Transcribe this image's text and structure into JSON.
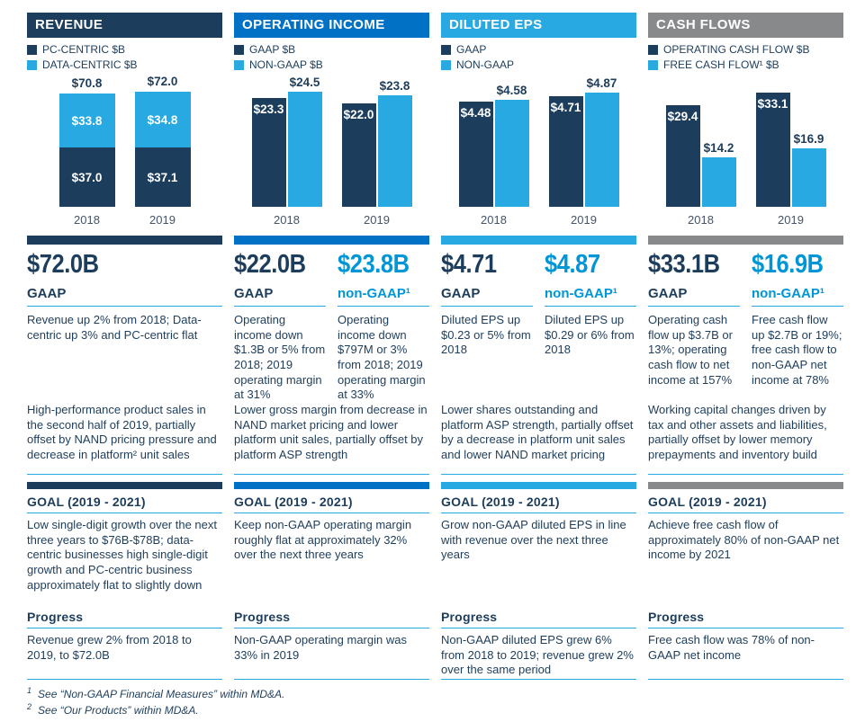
{
  "colors": {
    "navy": "#1d3d5c",
    "medium_blue": "#0071c5",
    "light_blue": "#29a9e1",
    "gray": "#87898b",
    "nongaap_blue": "#0096d6",
    "rule_blue": "#29a9e1"
  },
  "chart_data": [
    {
      "type": "bar",
      "stacked": true,
      "title": "REVENUE",
      "categories": [
        "2018",
        "2019"
      ],
      "series": [
        {
          "name": "PC-CENTRIC $B",
          "color": "#1d3d5c",
          "values": [
            37.0,
            37.1
          ],
          "labels": [
            "$37.0",
            "$37.1"
          ],
          "label_placement": "inside"
        },
        {
          "name": "DATA-CENTRIC $B",
          "color": "#29a9e1",
          "values": [
            33.8,
            34.8
          ],
          "labels": [
            "$33.8",
            "$34.8"
          ],
          "label_placement": "inside"
        }
      ],
      "totals": [
        70.8,
        72.0
      ],
      "total_labels": [
        "$70.8",
        "$72.0"
      ],
      "ylim": [
        0,
        82
      ],
      "legend_position": "top-left",
      "grid": false
    },
    {
      "type": "bar",
      "stacked": false,
      "title": "OPERATING INCOME",
      "categories": [
        "2018",
        "2019"
      ],
      "series": [
        {
          "name": "GAAP $B",
          "color": "#1d3d5c",
          "values": [
            23.3,
            22.0
          ],
          "labels": [
            "$23.3",
            "$22.0"
          ],
          "label_placement": "inside"
        },
        {
          "name": "NON-GAAP $B",
          "color": "#29a9e1",
          "values": [
            24.5,
            23.8
          ],
          "labels": [
            "$24.5",
            "$23.8"
          ],
          "label_placement": "above"
        }
      ],
      "ylim": [
        0,
        28
      ],
      "legend_position": "top-left",
      "grid": false
    },
    {
      "type": "bar",
      "stacked": false,
      "title": "DILUTED EPS",
      "categories": [
        "2018",
        "2019"
      ],
      "series": [
        {
          "name": "GAAP",
          "color": "#1d3d5c",
          "values": [
            4.48,
            4.71
          ],
          "labels": [
            "$4.48",
            "$4.71"
          ],
          "label_placement": "inside"
        },
        {
          "name": "NON-GAAP",
          "color": "#29a9e1",
          "values": [
            4.58,
            4.87
          ],
          "labels": [
            "$4.58",
            "$4.87"
          ],
          "label_placement": "above"
        }
      ],
      "ylim": [
        0,
        5.6
      ],
      "legend_position": "top-left",
      "grid": false
    },
    {
      "type": "bar",
      "stacked": false,
      "title": "CASH FLOWS",
      "categories": [
        "2018",
        "2019"
      ],
      "series": [
        {
          "name": "OPERATING CASH FLOW $B",
          "color": "#1d3d5c",
          "values": [
            29.4,
            33.1
          ],
          "labels": [
            "$29.4",
            "$33.1"
          ],
          "label_placement": "inside"
        },
        {
          "name": "FREE CASH FLOW¹ $B",
          "color": "#29a9e1",
          "values": [
            14.2,
            16.9
          ],
          "labels": [
            "$14.2",
            "$16.9"
          ],
          "label_placement": "above"
        }
      ],
      "ylim": [
        0,
        38
      ],
      "legend_position": "top-left",
      "grid": false
    }
  ],
  "columns": [
    {
      "id": "revenue",
      "header": "REVENUE",
      "accent": "#1d3d5c",
      "metrics": [
        {
          "value": "$72.0B",
          "label": "GAAP",
          "color": "#1d3d5c",
          "desc": "Revenue up 2% from 2018; Data-centric up 3% and PC-centric flat"
        }
      ],
      "explanation": "High-performance product sales in the second half of 2019, partially offset by NAND pricing pressure and decrease in platform² unit sales",
      "goal": {
        "title": "GOAL (2019 - 2021)",
        "text": "Low single-digit growth over the next three years to $76B-$78B; data-centric businesses high single-digit growth and PC-centric business approximately flat to slightly down"
      },
      "progress": {
        "title": "Progress",
        "text": "Revenue grew 2% from 2018 to 2019, to $72.0B"
      }
    },
    {
      "id": "operating-income",
      "header": "OPERATING INCOME",
      "accent": "#0071c5",
      "metrics": [
        {
          "value": "$22.0B",
          "label": "GAAP",
          "color": "#1d3d5c",
          "desc": "Operating income down $1.3B or 5% from 2018; 2019 operating margin at 31%"
        },
        {
          "value": "$23.8B",
          "label": "non-GAAP¹",
          "color": "#0096d6",
          "desc": "Operating income down $797M or 3% from 2018; 2019 operating margin at 33%"
        }
      ],
      "explanation": "Lower gross margin from decrease in NAND market pricing and lower platform unit sales, partially offset by platform ASP strength",
      "goal": {
        "title": "GOAL (2019 - 2021)",
        "text": "Keep non-GAAP operating margin roughly flat at approximately 32% over the next three years"
      },
      "progress": {
        "title": "Progress",
        "text": "Non-GAAP operating margin was 33% in 2019"
      }
    },
    {
      "id": "diluted-eps",
      "header": "DILUTED EPS",
      "accent": "#29a9e1",
      "metrics": [
        {
          "value": "$4.71",
          "label": "GAAP",
          "color": "#1d3d5c",
          "desc": "Diluted EPS up $0.23 or 5% from 2018"
        },
        {
          "value": "$4.87",
          "label": "non-GAAP¹",
          "color": "#0096d6",
          "desc": "Diluted EPS up $0.29 or 6% from 2018"
        }
      ],
      "explanation": "Lower shares outstanding and platform ASP strength, partially offset by a decrease in platform unit sales and lower NAND market pricing",
      "goal": {
        "title": "GOAL (2019 - 2021)",
        "text": "Grow non-GAAP diluted EPS in line with revenue over the next three years"
      },
      "progress": {
        "title": "Progress",
        "text": "Non-GAAP diluted EPS grew 6% from 2018 to 2019; revenue grew 2% over the same period"
      }
    },
    {
      "id": "cash-flows",
      "header": "CASH FLOWS",
      "accent": "#87898b",
      "metrics": [
        {
          "value": "$33.1B",
          "label": "GAAP",
          "color": "#1d3d5c",
          "desc": "Operating cash flow up $3.7B or 13%; operating cash flow to net income at 157%"
        },
        {
          "value": "$16.9B",
          "label": "non-GAAP¹",
          "color": "#0096d6",
          "desc": "Free cash flow up $2.7B or 19%; free cash flow to non-GAAP net income at 78%"
        }
      ],
      "explanation": "Working capital changes driven by tax and other assets and liabilities, partially offset by lower memory prepayments and inventory build",
      "goal": {
        "title": "GOAL (2019 - 2021)",
        "text": "Achieve free cash flow of approximately 80% of non-GAAP net income by 2021"
      },
      "progress": {
        "title": "Progress",
        "text": "Free cash flow was 78% of non-GAAP net income"
      }
    }
  ],
  "footnotes": [
    {
      "sup": "1",
      "text": "See “Non-GAAP Financial Measures” within MD&A."
    },
    {
      "sup": "2",
      "text": "See “Our Products” within MD&A."
    }
  ]
}
